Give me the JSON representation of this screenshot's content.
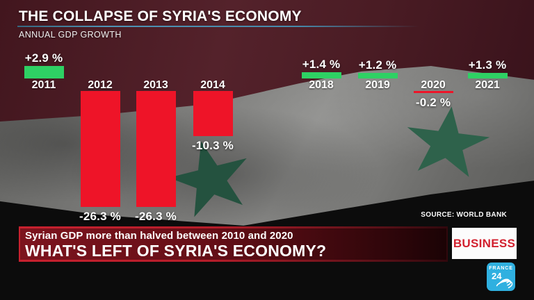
{
  "header": {
    "title": "THE COLLAPSE OF SYRIA'S ECONOMY",
    "subtitle": "ANNUAL GDP GROWTH"
  },
  "chart_data": {
    "type": "bar",
    "title": "THE COLLAPSE OF SYRIA'S ECONOMY",
    "subtitle": "ANNUAL GDP GROWTH",
    "ylabel": "Annual GDP growth (%)",
    "categories": [
      "2011",
      "2012",
      "2013",
      "2014",
      "2018",
      "2019",
      "2020",
      "2021"
    ],
    "values": [
      2.9,
      -26.3,
      -26.3,
      -10.3,
      1.4,
      1.2,
      -0.2,
      1.3
    ],
    "value_labels": [
      "+2.9 %",
      "-26.3 %",
      "-26.3 %",
      "-10.3 %",
      "+1.4 %",
      "+1.2 %",
      "-0.2 %",
      "+1.3 %"
    ],
    "positive_color": "#2ed164",
    "negative_color": "#ee1428",
    "note": "years 2015-2017 not shown",
    "source": "SOURCE: WORLD BANK"
  },
  "source_label": "SOURCE: WORLD BANK",
  "banner": {
    "line1": "Syrian GDP more than halved between 2010 and 2020",
    "line2": "WHAT'S LEFT OF SYRIA'S ECONOMY?"
  },
  "badge_label": "BUSINESS",
  "logo": {
    "line1": "FRANCE",
    "line2": "24"
  },
  "colors": {
    "positive": "#2ed164",
    "negative": "#ee1428",
    "banner_border": "#c8212f",
    "banner_fill": "#650f17",
    "badge_text": "#d2202e",
    "logo_blue": "#2fb0e0",
    "title_underline": "#4e93b5",
    "flag_star_green": "#2e624b"
  }
}
